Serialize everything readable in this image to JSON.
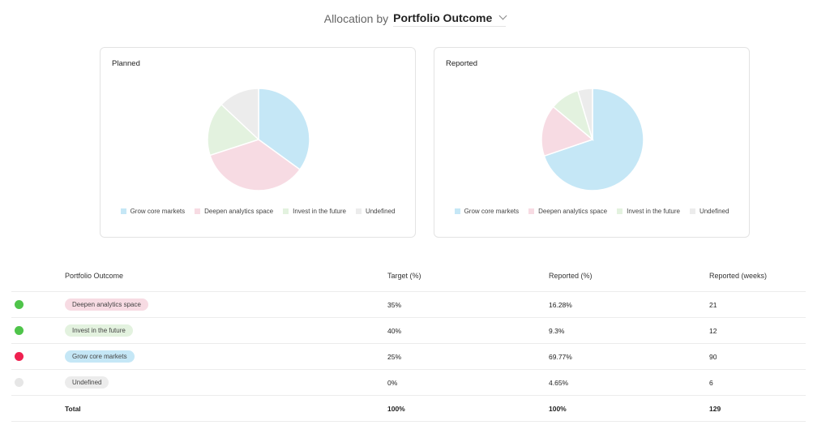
{
  "header": {
    "prefix": "Allocation by",
    "value": "Portfolio Outcome"
  },
  "colors": {
    "grow": "#c5e7f6",
    "deepen": "#f7dbe3",
    "invest": "#e3f2df",
    "undefined": "#ececec",
    "status_green": "#4fc44a",
    "status_red": "#ef2150",
    "status_grey": "#e6e6e6"
  },
  "charts": [
    {
      "title": "Planned",
      "slices": [
        {
          "label": "Grow core markets",
          "value": 35,
          "color": "#c5e7f6"
        },
        {
          "label": "Deepen analytics space",
          "value": 35,
          "color": "#f7dbe3"
        },
        {
          "label": "Invest in the future",
          "value": 17,
          "color": "#e3f2df"
        },
        {
          "label": "Undefined",
          "value": 13,
          "color": "#ececec"
        }
      ]
    },
    {
      "title": "Reported",
      "slices": [
        {
          "label": "Grow core markets",
          "value": 69.77,
          "color": "#c5e7f6"
        },
        {
          "label": "Deepen analytics space",
          "value": 16.28,
          "color": "#f7dbe3"
        },
        {
          "label": "Invest in the future",
          "value": 9.3,
          "color": "#e3f2df"
        },
        {
          "label": "Undefined",
          "value": 4.65,
          "color": "#ececec"
        }
      ]
    }
  ],
  "legend": [
    {
      "label": "Grow core markets",
      "color": "#c5e7f6"
    },
    {
      "label": "Deepen analytics space",
      "color": "#f7dbe3"
    },
    {
      "label": "Invest in the future",
      "color": "#e3f2df"
    },
    {
      "label": "Undefined",
      "color": "#ececec"
    }
  ],
  "table": {
    "headers": {
      "outcome": "Portfolio Outcome",
      "target": "Target (%)",
      "reported": "Reported (%)",
      "weeks": "Reported (weeks)"
    },
    "rows": [
      {
        "status": "green",
        "name": "Deepen analytics space",
        "chip_color": "#f7dbe3",
        "target": "35%",
        "reported": "16.28%",
        "weeks": "21"
      },
      {
        "status": "green",
        "name": "Invest in the future",
        "chip_color": "#e3f2df",
        "target": "40%",
        "reported": "9.3%",
        "weeks": "12"
      },
      {
        "status": "red",
        "name": "Grow core markets",
        "chip_color": "#c5e7f6",
        "target": "25%",
        "reported": "69.77%",
        "weeks": "90"
      },
      {
        "status": "grey",
        "name": "Undefined",
        "chip_color": "#ececec",
        "target": "0%",
        "reported": "4.65%",
        "weeks": "6"
      }
    ],
    "total": {
      "label": "Total",
      "target": "100%",
      "reported": "100%",
      "weeks": "129"
    }
  }
}
